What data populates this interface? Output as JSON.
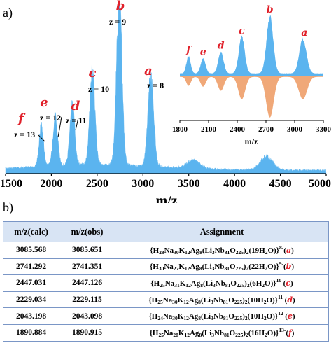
{
  "panel_a_label": "a)",
  "panel_b_label": "b)",
  "colors": {
    "spectrum_fill": "#5bb4ef",
    "inset_upper_fill": "#5bb4ef",
    "inset_lower_fill": "#f0a878",
    "peak_letter": "#e0202a",
    "table_header_bg": "#d8e4f4",
    "table_border": "#7a96c6"
  },
  "chart_data": [
    {
      "type": "area",
      "xlabel": "m/z",
      "xlim": [
        1500,
        5000
      ],
      "x_ticks": [
        "1500",
        "2000",
        "2500",
        "3000",
        "3500",
        "4000",
        "4500",
        "5000"
      ],
      "peaks": [
        {
          "letter": "f",
          "charge": "z = 13",
          "x": 1891,
          "y": 0.25
        },
        {
          "letter": "e",
          "charge": "z = 12",
          "x": 2043,
          "y": 0.31
        },
        {
          "letter": "d",
          "charge": "z = 11",
          "x": 2229,
          "y": 0.36
        },
        {
          "letter": "c",
          "charge": "z = 10",
          "x": 2447,
          "y": 0.58
        },
        {
          "letter": "b",
          "charge": "z = 9",
          "x": 2741,
          "y": 1.0
        },
        {
          "letter": "a",
          "charge": "z = 8",
          "x": 3086,
          "y": 0.56
        }
      ],
      "minor_features": [
        {
          "x": 3550,
          "y": 0.05
        },
        {
          "x": 4350,
          "y": 0.08
        }
      ]
    },
    {
      "type": "area",
      "xlabel": "m/z",
      "xlim": [
        1800,
        3300
      ],
      "x_ticks": [
        "1800",
        "2100",
        "2400",
        "2700",
        "3000",
        "3300"
      ],
      "upper_peaks": [
        {
          "letter": "f",
          "x": 1891,
          "y": 0.3
        },
        {
          "letter": "e",
          "x": 2043,
          "y": 0.26
        },
        {
          "letter": "d",
          "x": 2229,
          "y": 0.37
        },
        {
          "letter": "c",
          "x": 2447,
          "y": 0.63
        },
        {
          "letter": "b",
          "x": 2741,
          "y": 1.0
        },
        {
          "letter": "a",
          "x": 3086,
          "y": 0.6
        }
      ],
      "lower_peaks": [
        {
          "x": 1891,
          "y": 0.22
        },
        {
          "x": 2043,
          "y": 0.24
        },
        {
          "x": 2229,
          "y": 0.34
        },
        {
          "x": 2447,
          "y": 0.55
        },
        {
          "x": 2741,
          "y": 1.0
        },
        {
          "x": 3086,
          "y": 0.55
        }
      ]
    }
  ],
  "table": {
    "headers": [
      "m/z(calc)",
      "m/z(obs)",
      "Assignment"
    ],
    "rows": [
      {
        "calc": "3085.568",
        "obs": "3085.651",
        "formula": [
          [
            "",
            "{H"
          ],
          [
            "sub",
            "28"
          ],
          [
            "",
            "Na"
          ],
          [
            "sub",
            "30"
          ],
          [
            "",
            "K"
          ],
          [
            "sub",
            "12"
          ],
          [
            "",
            "Ag"
          ],
          [
            "sub",
            "8"
          ],
          [
            "",
            "(Li"
          ],
          [
            "sub",
            "3"
          ],
          [
            "",
            "Nb"
          ],
          [
            "sub",
            "81"
          ],
          [
            "",
            "O"
          ],
          [
            "sub",
            "225"
          ],
          [
            "",
            ")"
          ],
          [
            "sub",
            "2"
          ],
          [
            "",
            "(19H"
          ],
          [
            "sub",
            "2"
          ],
          [
            "",
            "O)}"
          ],
          [
            "sup",
            "8-"
          ],
          [
            "",
            "("
          ],
          [
            "letter",
            "a"
          ],
          [
            "",
            ")"
          ]
        ]
      },
      {
        "calc": "2741.292",
        "obs": "2741.351",
        "formula": [
          [
            "",
            "{H"
          ],
          [
            "sub",
            "30"
          ],
          [
            "",
            "Na"
          ],
          [
            "sub",
            "27"
          ],
          [
            "",
            "K"
          ],
          [
            "sub",
            "12"
          ],
          [
            "",
            "Ag"
          ],
          [
            "sub",
            "8"
          ],
          [
            "",
            "(Li"
          ],
          [
            "sub",
            "3"
          ],
          [
            "",
            "Nb"
          ],
          [
            "sub",
            "81"
          ],
          [
            "",
            "O"
          ],
          [
            "sub",
            "225"
          ],
          [
            "",
            ")"
          ],
          [
            "sub",
            "2"
          ],
          [
            "",
            "(22H"
          ],
          [
            "sub",
            "2"
          ],
          [
            "",
            "O)}"
          ],
          [
            "sup",
            "9-"
          ],
          [
            "",
            "("
          ],
          [
            "letter",
            "b"
          ],
          [
            "",
            ")"
          ]
        ]
      },
      {
        "calc": "2447.031",
        "obs": "2447.126",
        "formula": [
          [
            "",
            "{H"
          ],
          [
            "sub",
            "25"
          ],
          [
            "",
            "Na"
          ],
          [
            "sub",
            "31"
          ],
          [
            "",
            "K"
          ],
          [
            "sub",
            "12"
          ],
          [
            "",
            "Ag"
          ],
          [
            "sub",
            "8"
          ],
          [
            "",
            "(Li"
          ],
          [
            "sub",
            "3"
          ],
          [
            "",
            "Nb"
          ],
          [
            "sub",
            "81"
          ],
          [
            "",
            "O"
          ],
          [
            "sub",
            "225"
          ],
          [
            "",
            ")"
          ],
          [
            "sub",
            "2"
          ],
          [
            "",
            "(6H"
          ],
          [
            "sub",
            "2"
          ],
          [
            "",
            "O)}"
          ],
          [
            "sup",
            "10-"
          ],
          [
            "",
            "("
          ],
          [
            "letter",
            "c"
          ],
          [
            "",
            ")"
          ]
        ]
      },
      {
        "calc": "2229.034",
        "obs": "2229.115",
        "formula": [
          [
            "",
            "{H"
          ],
          [
            "sub",
            "25"
          ],
          [
            "",
            "Na"
          ],
          [
            "sub",
            "30"
          ],
          [
            "",
            "K"
          ],
          [
            "sub",
            "12"
          ],
          [
            "",
            "Ag"
          ],
          [
            "sub",
            "8"
          ],
          [
            "",
            "(Li"
          ],
          [
            "sub",
            "3"
          ],
          [
            "",
            "Nb"
          ],
          [
            "sub",
            "81"
          ],
          [
            "",
            "O"
          ],
          [
            "sub",
            "225"
          ],
          [
            "",
            ")"
          ],
          [
            "sub",
            "2"
          ],
          [
            "",
            "(10H"
          ],
          [
            "sub",
            "2"
          ],
          [
            "",
            "O)}"
          ],
          [
            "sup",
            "11-"
          ],
          [
            "",
            "("
          ],
          [
            "letter",
            "d"
          ],
          [
            "",
            ")"
          ]
        ]
      },
      {
        "calc": "2043.198",
        "obs": "2043.098",
        "formula": [
          [
            "",
            "{H"
          ],
          [
            "sub",
            "24"
          ],
          [
            "",
            "Na"
          ],
          [
            "sub",
            "30"
          ],
          [
            "",
            "K"
          ],
          [
            "sub",
            "12"
          ],
          [
            "",
            "Ag"
          ],
          [
            "sub",
            "8"
          ],
          [
            "",
            "(Li"
          ],
          [
            "sub",
            "3"
          ],
          [
            "",
            "Nb"
          ],
          [
            "sub",
            "81"
          ],
          [
            "",
            "O"
          ],
          [
            "sub",
            "225"
          ],
          [
            "",
            ")"
          ],
          [
            "sub",
            "2"
          ],
          [
            "",
            "(10H"
          ],
          [
            "sub",
            "2"
          ],
          [
            "",
            "O)}"
          ],
          [
            "sup",
            "12-"
          ],
          [
            "",
            "("
          ],
          [
            "letter",
            "e"
          ],
          [
            "",
            ")"
          ]
        ]
      },
      {
        "calc": "1890.884",
        "obs": "1890.915",
        "formula": [
          [
            "",
            "{H"
          ],
          [
            "sub",
            "25"
          ],
          [
            "",
            "Na"
          ],
          [
            "sub",
            "28"
          ],
          [
            "",
            "K"
          ],
          [
            "sub",
            "12"
          ],
          [
            "",
            "Ag"
          ],
          [
            "sub",
            "8"
          ],
          [
            "",
            "(Li"
          ],
          [
            "sub",
            "3"
          ],
          [
            "",
            "Nb"
          ],
          [
            "sub",
            "81"
          ],
          [
            "",
            "O"
          ],
          [
            "sub",
            "225"
          ],
          [
            "",
            ")"
          ],
          [
            "sub",
            "2"
          ],
          [
            "",
            "(16H"
          ],
          [
            "sub",
            "2"
          ],
          [
            "",
            "O)}"
          ],
          [
            "sup",
            "13-"
          ],
          [
            "",
            "("
          ],
          [
            "letter",
            "f"
          ],
          [
            "",
            ")"
          ]
        ]
      }
    ]
  }
}
